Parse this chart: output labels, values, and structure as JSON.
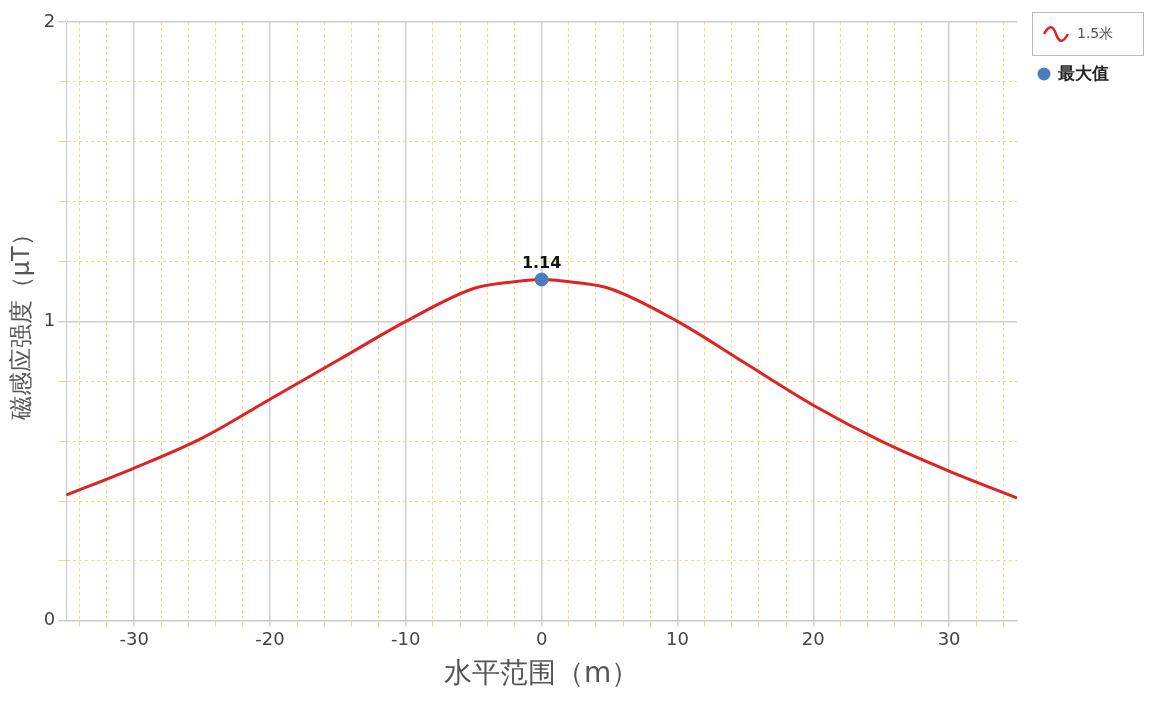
{
  "chart_data": {
    "type": "line",
    "xlabel": "水平范围（m）",
    "ylabel": "磁感应强度（μT）",
    "xlim": [
      -35,
      35
    ],
    "xticks": [
      {
        "value": -34,
        "label": null
      },
      {
        "value": -32,
        "label": null
      },
      -30,
      {
        "value": -28,
        "label": null
      },
      {
        "value": -26,
        "label": null
      },
      {
        "value": -24,
        "label": null
      },
      {
        "value": -22,
        "label": null
      },
      -20,
      {
        "value": -18,
        "label": null
      },
      {
        "value": -16,
        "label": null
      },
      {
        "value": -14,
        "label": null
      },
      {
        "value": -12,
        "label": null
      },
      -10,
      {
        "value": -8,
        "label": null
      },
      {
        "value": -6,
        "label": null
      },
      {
        "value": -4,
        "label": null
      },
      {
        "value": -2,
        "label": null
      },
      0,
      {
        "value": 2,
        "label": null
      },
      {
        "value": 4,
        "label": null
      },
      {
        "value": 6,
        "label": null
      },
      {
        "value": 8,
        "label": null
      },
      10,
      {
        "value": 12,
        "label": null
      },
      {
        "value": 14,
        "label": null
      },
      {
        "value": 16,
        "label": null
      },
      {
        "value": 18,
        "label": null
      },
      20,
      {
        "value": 22,
        "label": null
      },
      {
        "value": 24,
        "label": null
      },
      {
        "value": 26,
        "label": null
      },
      {
        "value": 28,
        "label": null
      },
      30,
      {
        "value": 32,
        "label": null
      },
      {
        "value": 34,
        "label": null
      }
    ],
    "ylim": [
      0,
      2
    ],
    "yticks": [
      0,
      {
        "value": 0.2,
        "label": null
      },
      {
        "value": 0.4,
        "label": null
      },
      {
        "value": 0.6,
        "label": null
      },
      {
        "value": 0.8,
        "label": null
      },
      1,
      {
        "value": 1.2,
        "label": null
      },
      {
        "value": 1.4,
        "label": null
      },
      {
        "value": 1.6,
        "label": null
      },
      {
        "value": 1.8,
        "label": null
      },
      2
    ],
    "grid": true,
    "legend": "top right",
    "marker": "none",
    "line_style": "solid",
    "series": [
      {
        "name": "1.5米",
        "color": "#e02222",
        "x": [
          -35,
          -30,
          -25,
          -20,
          -15,
          -10,
          -5,
          -2.5,
          0,
          2.5,
          5,
          10,
          15,
          20,
          25,
          30,
          35
        ],
        "values": [
          0.42,
          0.51,
          0.61,
          0.74,
          0.87,
          1.0,
          1.11,
          1.13,
          1.14,
          1.13,
          1.11,
          1.0,
          0.86,
          0.72,
          0.6,
          0.5,
          0.41
        ]
      },
      {
        "name": "最大值",
        "type": "scatter",
        "marker": "circle",
        "color": "#4a7ebb",
        "x": [
          0
        ],
        "values": [
          1.14
        ],
        "value_labels": [
          "1.14"
        ]
      }
    ]
  }
}
